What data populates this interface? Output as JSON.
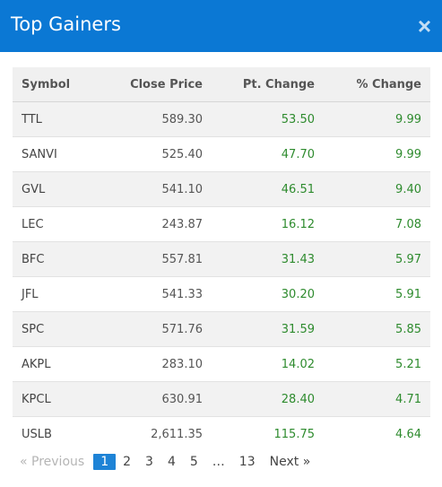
{
  "header": {
    "title": "Top Gainers",
    "close_glyph": "×"
  },
  "table": {
    "columns": [
      "Symbol",
      "Close Price",
      "Pt. Change",
      "% Change"
    ],
    "rows": [
      [
        "TTL",
        "589.30",
        "53.50",
        "9.99"
      ],
      [
        "SANVI",
        "525.40",
        "47.70",
        "9.99"
      ],
      [
        "GVL",
        "541.10",
        "46.51",
        "9.40"
      ],
      [
        "LEC",
        "243.87",
        "16.12",
        "7.08"
      ],
      [
        "BFC",
        "557.81",
        "31.43",
        "5.97"
      ],
      [
        "JFL",
        "541.33",
        "30.20",
        "5.91"
      ],
      [
        "SPC",
        "571.76",
        "31.59",
        "5.85"
      ],
      [
        "AKPL",
        "283.10",
        "14.02",
        "5.21"
      ],
      [
        "KPCL",
        "630.91",
        "28.40",
        "4.71"
      ],
      [
        "USLB",
        "2,611.35",
        "115.75",
        "4.64"
      ]
    ]
  },
  "pagination": {
    "previous": "« Previous",
    "pages": [
      "1",
      "2",
      "3",
      "4",
      "5"
    ],
    "ellipsis": "…",
    "last_page": "13",
    "next": "Next »",
    "active_page": "1"
  },
  "colors": {
    "header_bg": "#0b78d4",
    "positive": "#2e8b2e",
    "active_page_bg": "#1e83d6"
  }
}
